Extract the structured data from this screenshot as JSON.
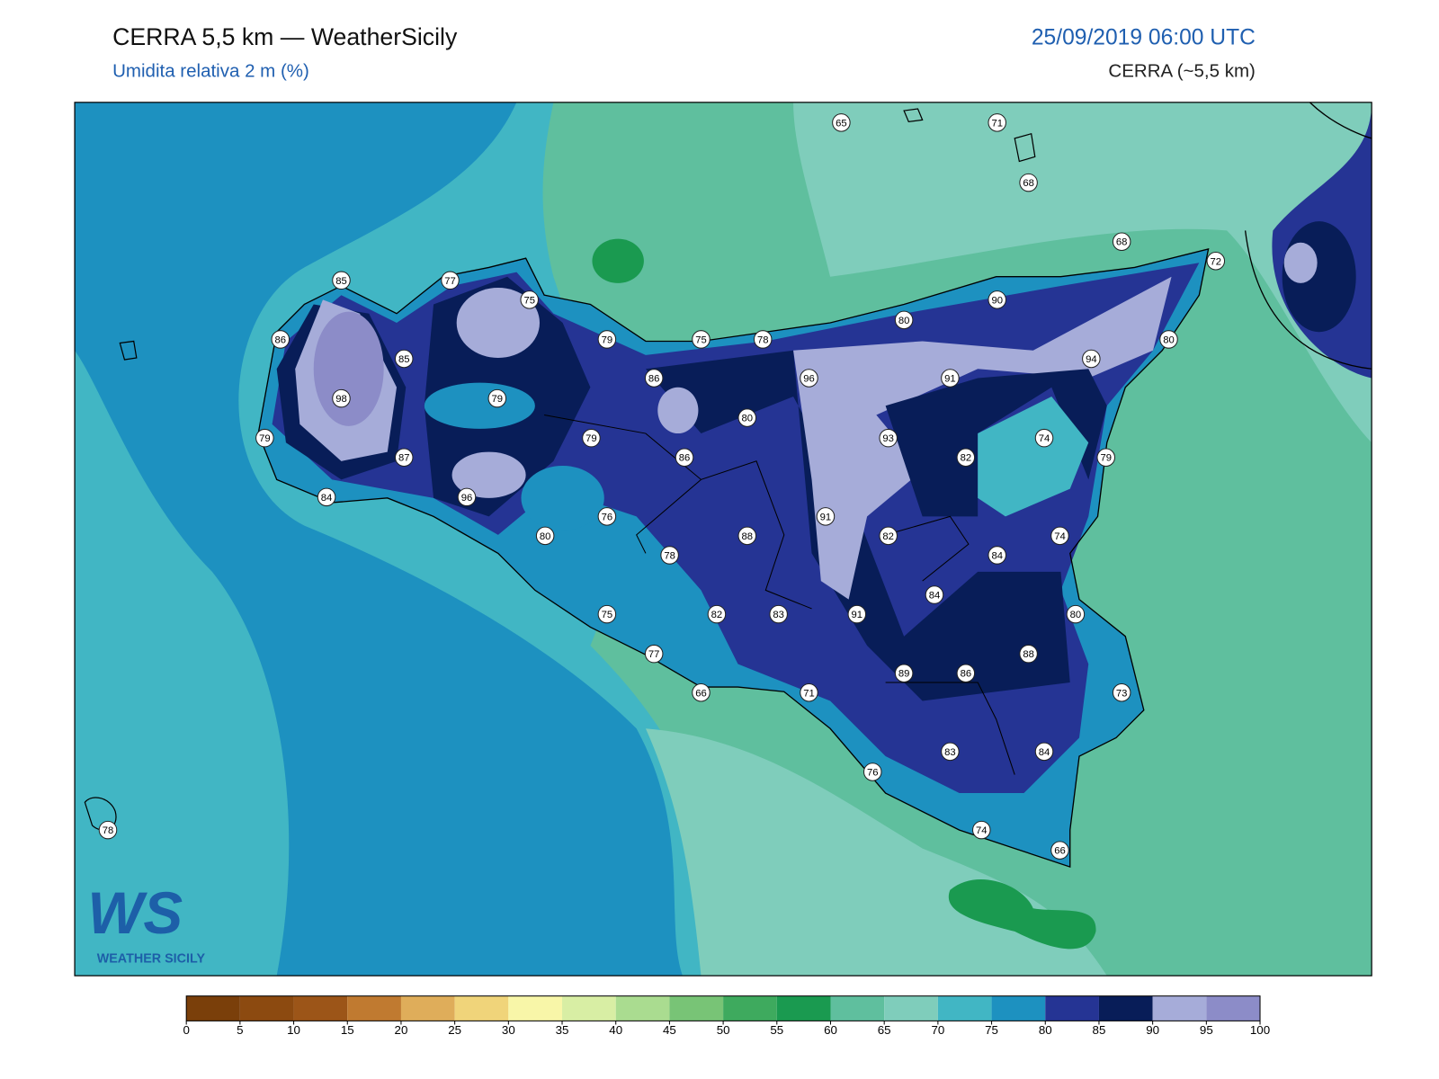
{
  "header": {
    "title": "CERRA 5,5 km — WeatherSicily",
    "subtitle": "Umidita relativa 2 m (%)",
    "date": "25/09/2019 06:00 UTC",
    "model": "CERRA (~5,5 km)"
  },
  "stations": [
    65,
    71,
    68,
    68,
    72,
    85,
    77,
    75,
    90,
    80,
    86,
    79,
    75,
    78,
    80,
    85,
    94,
    86,
    96,
    91,
    98,
    79,
    80,
    93,
    74,
    79,
    79,
    87,
    86,
    82,
    79,
    84,
    96,
    76,
    91,
    80,
    88,
    82,
    74,
    78,
    84,
    84,
    75,
    82,
    83,
    91,
    80,
    77,
    88,
    89,
    86,
    66,
    71,
    73,
    83,
    84,
    76,
    74,
    66,
    78
  ],
  "colorbar": {
    "ticks": [
      0,
      5,
      10,
      15,
      20,
      25,
      30,
      35,
      40,
      45,
      50,
      55,
      60,
      65,
      70,
      75,
      80,
      85,
      90,
      95,
      100
    ],
    "colors": [
      "#7a3f0a",
      "#8c4a10",
      "#9c5518",
      "#c07a30",
      "#dfad5a",
      "#f0d47a",
      "#f8f6a8",
      "#d8eea4",
      "#aadc90",
      "#78c476",
      "#3eaa5e",
      "#1a9a50",
      "#5fbf9e",
      "#7fcdbb",
      "#41b6c4",
      "#1d91c0",
      "#253494",
      "#081d58",
      "#a6acd9",
      "#8c8cc8"
    ]
  },
  "logo": {
    "mark": "WS",
    "text": "WEATHER SICILY"
  }
}
